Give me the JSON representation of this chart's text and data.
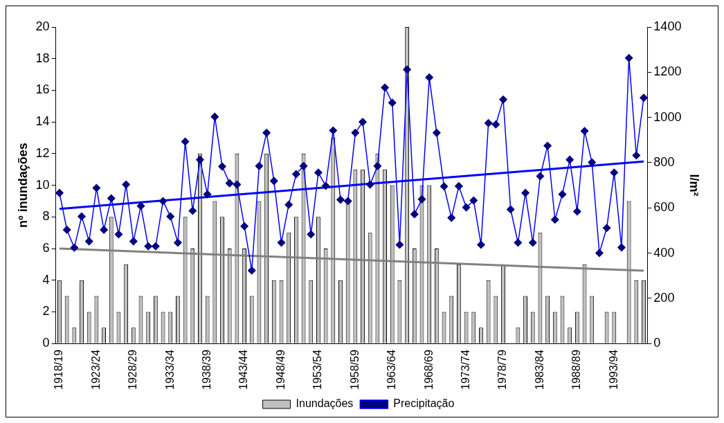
{
  "chart_data": {
    "type": "bar",
    "categories": [
      "1918/19",
      null,
      null,
      null,
      null,
      "1923/24",
      null,
      null,
      null,
      null,
      "1928/29",
      null,
      null,
      null,
      null,
      "1933/34",
      null,
      null,
      null,
      null,
      "1938/39",
      null,
      null,
      null,
      null,
      "1943/44",
      null,
      null,
      null,
      null,
      "1948/49",
      null,
      null,
      null,
      null,
      "1953/54",
      null,
      null,
      null,
      null,
      "1958/59",
      null,
      null,
      null,
      null,
      "1963/64",
      null,
      null,
      null,
      null,
      "1968/69",
      null,
      null,
      null,
      null,
      "1973/74",
      null,
      null,
      null,
      null,
      "1978/79",
      null,
      null,
      null,
      null,
      "1983/84",
      null,
      null,
      null,
      null,
      "1988/89",
      null,
      null,
      null,
      null,
      "1993/94",
      null,
      null,
      null,
      null
    ],
    "series": [
      {
        "name": "Inundações",
        "color": "#c0c0c0",
        "values": [
          4,
          3,
          1,
          4,
          2,
          3,
          1,
          8,
          2,
          5,
          1,
          3,
          2,
          3,
          2,
          2,
          3,
          8,
          6,
          12,
          3,
          9,
          8,
          6,
          12,
          6,
          3,
          9,
          12,
          4,
          4,
          7,
          8,
          12,
          4,
          8,
          6,
          13,
          4,
          9,
          11,
          11,
          7,
          12,
          11,
          10,
          4,
          20,
          6,
          10,
          10,
          6,
          2,
          3,
          5,
          2,
          2,
          1,
          4,
          3,
          5,
          0,
          1,
          3,
          2,
          7,
          3,
          2,
          3,
          1,
          2,
          5,
          3,
          0,
          2,
          2,
          0,
          9,
          4,
          4
        ]
      },
      {
        "name": "Precipitação",
        "type": "line",
        "axis": "y2",
        "color": "#0000ff",
        "marker": "diamond",
        "values": [
          666,
          503,
          424,
          562,
          452,
          688,
          503,
          642,
          483,
          703,
          452,
          608,
          430,
          430,
          630,
          562,
          446,
          893,
          587,
          813,
          660,
          1003,
          783,
          709,
          703,
          519,
          323,
          785,
          932,
          719,
          446,
          614,
          749,
          785,
          483,
          756,
          697,
          942,
          636,
          630,
          932,
          980,
          703,
          785,
          1132,
          1065,
          437,
          1212,
          572,
          638,
          1177,
          932,
          695,
          556,
          696,
          602,
          633,
          437,
          975,
          969,
          1079,
          593,
          446,
          666,
          446,
          740,
          875,
          548,
          660,
          813,
          584,
          940,
          801,
          400,
          511,
          756,
          425,
          1263,
          832,
          1087
        ]
      },
      {
        "type": "line",
        "color": "#808080",
        "marker": "none",
        "values": [
          6.0,
          null,
          null,
          null,
          null,
          null,
          null,
          null,
          null,
          null,
          null,
          null,
          null,
          null,
          null,
          null,
          null,
          null,
          null,
          null,
          null,
          null,
          null,
          null,
          null,
          null,
          null,
          null,
          null,
          null,
          null,
          null,
          null,
          null,
          null,
          null,
          null,
          null,
          null,
          null,
          null,
          null,
          null,
          null,
          null,
          null,
          null,
          null,
          null,
          null,
          null,
          null,
          null,
          null,
          null,
          null,
          null,
          null,
          null,
          null,
          null,
          null,
          null,
          null,
          null,
          null,
          null,
          null,
          null,
          null,
          null,
          null,
          null,
          null,
          null,
          null,
          null,
          null,
          null,
          4.6
        ]
      },
      {
        "type": "line",
        "axis": "y2",
        "color": "#0000ff",
        "marker": "none",
        "values": [
          595,
          null,
          null,
          null,
          null,
          null,
          null,
          null,
          null,
          null,
          null,
          null,
          null,
          null,
          null,
          null,
          null,
          null,
          null,
          null,
          null,
          null,
          null,
          null,
          null,
          null,
          null,
          null,
          null,
          null,
          null,
          null,
          null,
          null,
          null,
          null,
          null,
          null,
          null,
          null,
          null,
          null,
          null,
          null,
          null,
          null,
          null,
          null,
          null,
          null,
          null,
          null,
          null,
          null,
          null,
          null,
          null,
          null,
          null,
          null,
          null,
          null,
          null,
          null,
          null,
          null,
          null,
          null,
          null,
          null,
          null,
          null,
          null,
          null,
          null,
          null,
          null,
          null,
          null,
          805
        ]
      }
    ],
    "ylabel": "nº inundações",
    "y2label": "l/m²",
    "ylim": [
      0,
      20
    ],
    "yticks": [
      0,
      2,
      4,
      6,
      8,
      10,
      12,
      14,
      16,
      18,
      20
    ],
    "y2lim": [
      0,
      1400
    ],
    "y2ticks": [
      0,
      200,
      400,
      600,
      800,
      1000,
      1200,
      1400
    ],
    "grid": false,
    "legend": "bottom"
  }
}
